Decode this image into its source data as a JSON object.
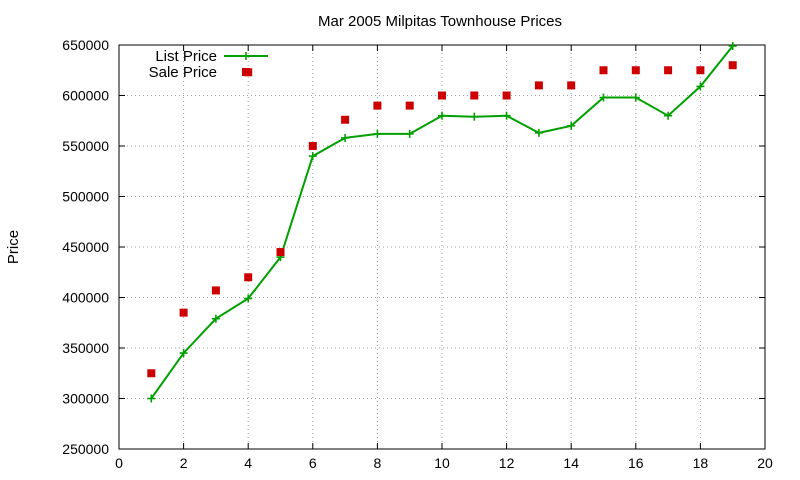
{
  "chart_data": {
    "type": "line",
    "title": "Mar 2005 Milpitas Townhouse Prices",
    "xlabel": "",
    "ylabel": "Price",
    "xlim": [
      0,
      20
    ],
    "ylim": [
      250000,
      650000
    ],
    "xticks": [
      0,
      2,
      4,
      6,
      8,
      10,
      12,
      14,
      16,
      18,
      20
    ],
    "yticks": [
      250000,
      300000,
      350000,
      400000,
      450000,
      500000,
      550000,
      600000,
      650000
    ],
    "grid": true,
    "legend_position": "top-left",
    "series": [
      {
        "name": "List Price",
        "style": "line+cross",
        "color": "#00a000",
        "x": [
          1,
          2,
          3,
          4,
          5,
          6,
          7,
          8,
          9,
          10,
          11,
          12,
          13,
          14,
          15,
          16,
          17,
          18,
          19
        ],
        "y": [
          300000,
          345000,
          379000,
          399000,
          440000,
          540000,
          558000,
          562000,
          562000,
          580000,
          579000,
          580000,
          563000,
          570000,
          598000,
          598000,
          580000,
          609000,
          649000
        ]
      },
      {
        "name": "Sale Price",
        "style": "square",
        "color": "#cc0000",
        "x": [
          1,
          2,
          3,
          4,
          4,
          5,
          6,
          7,
          8,
          9,
          10,
          11,
          12,
          13,
          14,
          15,
          16,
          17,
          18,
          19
        ],
        "y": [
          325000,
          385000,
          407000,
          420000,
          623000,
          445000,
          550000,
          576000,
          590000,
          590000,
          600000,
          600000,
          600000,
          610000,
          610000,
          625000,
          625000,
          625000,
          625000,
          630000
        ]
      }
    ]
  }
}
